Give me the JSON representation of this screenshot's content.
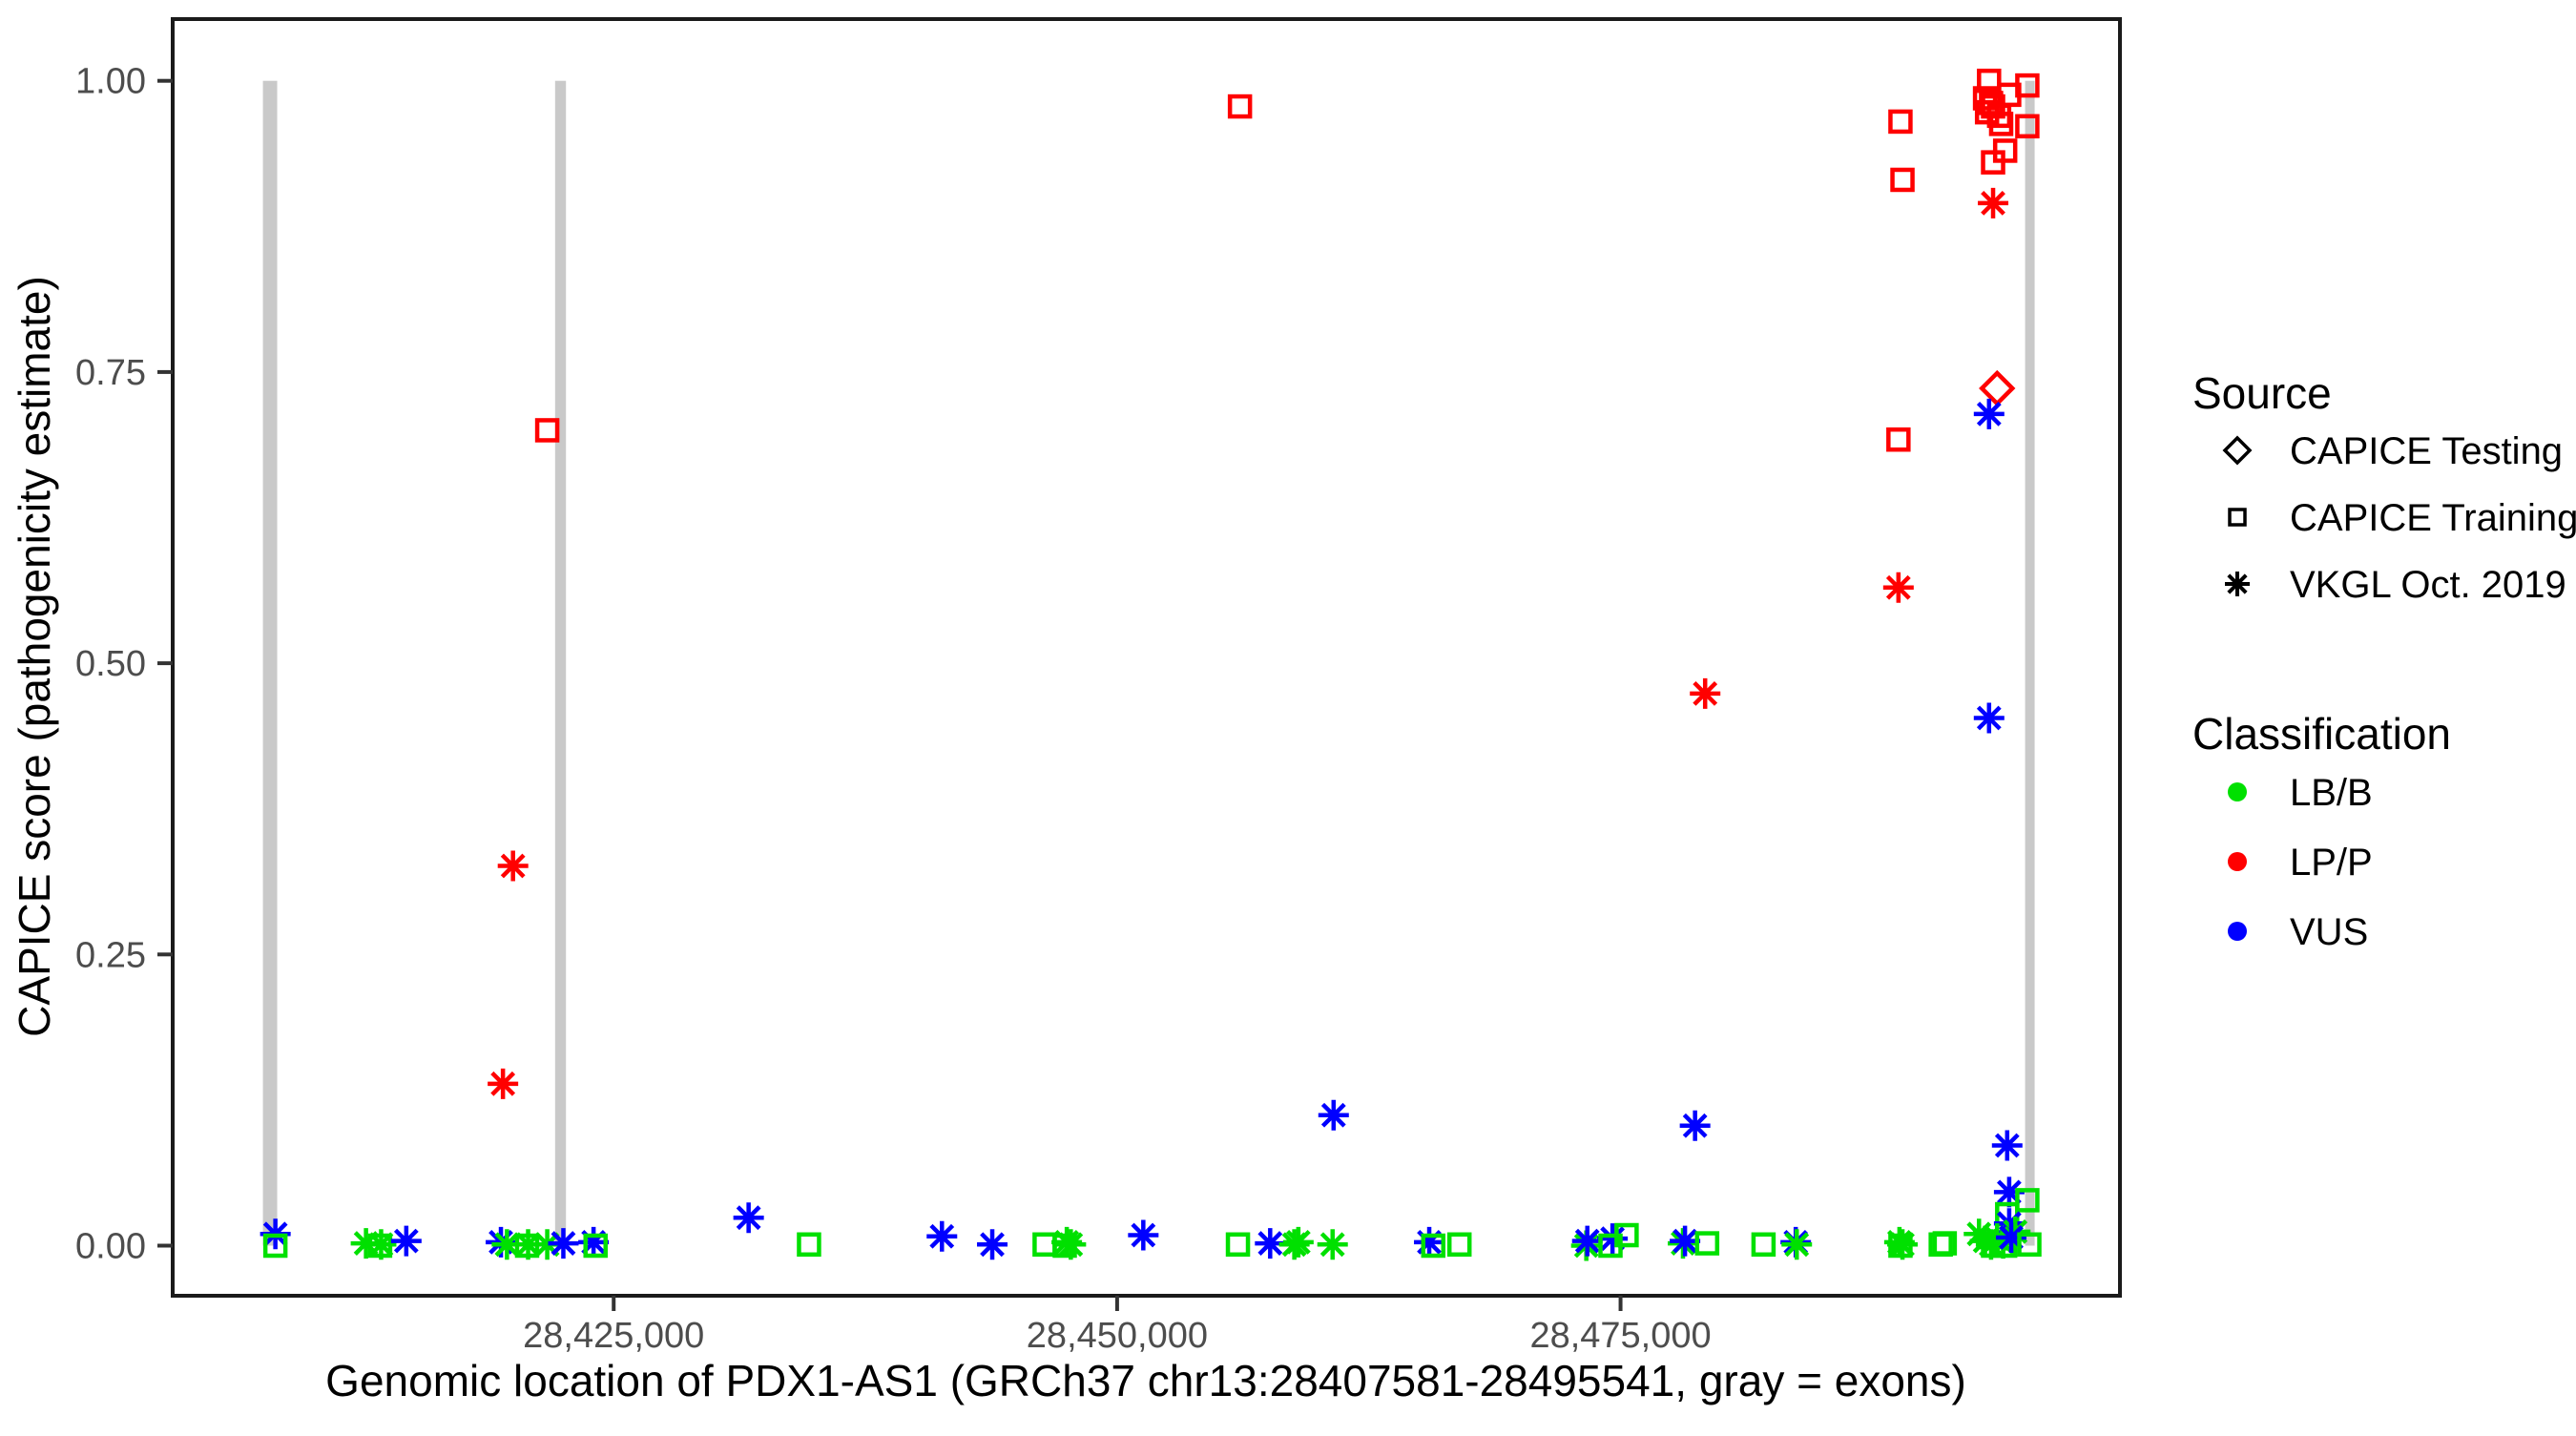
{
  "chart_data": {
    "type": "scatter",
    "title": "",
    "xlabel": "Genomic location of PDX1-AS1 (GRCh37 chr13:28407581-28495541, gray = exons)",
    "ylabel": "CAPICE score (pathogenicity estimate)",
    "x_domain": [
      28403100,
      28499800
    ],
    "y_domain": [
      -0.043,
      1.053
    ],
    "x_ticks": [
      {
        "value": 28425000,
        "label": "28,425,000"
      },
      {
        "value": 28450000,
        "label": "28,450,000"
      },
      {
        "value": 28475000,
        "label": "28,475,000"
      }
    ],
    "y_ticks": [
      {
        "value": 0.0,
        "label": "0.00"
      },
      {
        "value": 0.25,
        "label": "0.25"
      },
      {
        "value": 0.5,
        "label": "0.50"
      },
      {
        "value": 0.75,
        "label": "0.75"
      },
      {
        "value": 1.0,
        "label": "1.00"
      }
    ],
    "grid": false,
    "legend_position": "right",
    "exons": [
      [
        28407581,
        28408290
      ],
      [
        28422090,
        28422630
      ],
      [
        28495090,
        28495541
      ]
    ],
    "colors": {
      "LB/B": "#00E000",
      "LP/P": "#FF0000",
      "VUS": "#0000FF",
      "exon": "#C9C9C9",
      "axis_text": "#4D4D4D",
      "axis_line": "#1A1A1A",
      "legend_key": "#000000"
    },
    "marker_by_source": {
      "CAPICE Testing": "diamond",
      "CAPICE Training": "square",
      "VKGL Oct. 2019": "asterisk"
    },
    "legend": {
      "source_title": "Source",
      "source_items": [
        {
          "label": "CAPICE Testing",
          "marker": "diamond"
        },
        {
          "label": "CAPICE Training",
          "marker": "square"
        },
        {
          "label": "VKGL Oct. 2019",
          "marker": "asterisk"
        }
      ],
      "classification_title": "Classification",
      "classification_items": [
        {
          "label": "LB/B",
          "color": "#00E000"
        },
        {
          "label": "LP/P",
          "color": "#FF0000"
        },
        {
          "label": "VUS",
          "color": "#0000FF"
        }
      ]
    },
    "points": [
      {
        "pos": 28408200,
        "score": 0.01,
        "cls": "VUS",
        "src": "VKGL Oct. 2019"
      },
      {
        "pos": 28408200,
        "score": 0.0,
        "cls": "LB/B",
        "src": "CAPICE Training"
      },
      {
        "pos": 28412700,
        "score": 0.002,
        "cls": "LB/B",
        "src": "VKGL Oct. 2019"
      },
      {
        "pos": 28413400,
        "score": 0.0,
        "cls": "LB/B",
        "src": "CAPICE Training"
      },
      {
        "pos": 28413450,
        "score": 0.001,
        "cls": "LB/B",
        "src": "VKGL Oct. 2019"
      },
      {
        "pos": 28414700,
        "score": 0.004,
        "cls": "VUS",
        "src": "VKGL Oct. 2019"
      },
      {
        "pos": 28419500,
        "score": 0.139,
        "cls": "LP/P",
        "src": "VKGL Oct. 2019"
      },
      {
        "pos": 28420000,
        "score": 0.326,
        "cls": "LP/P",
        "src": "VKGL Oct. 2019"
      },
      {
        "pos": 28419400,
        "score": 0.003,
        "cls": "VUS",
        "src": "VKGL Oct. 2019"
      },
      {
        "pos": 28419700,
        "score": 0.001,
        "cls": "LB/B",
        "src": "VKGL Oct. 2019"
      },
      {
        "pos": 28420700,
        "score": 0.0,
        "cls": "LB/B",
        "src": "CAPICE Training"
      },
      {
        "pos": 28420750,
        "score": 0.001,
        "cls": "LB/B",
        "src": "VKGL Oct. 2019"
      },
      {
        "pos": 28421700,
        "score": 0.001,
        "cls": "LB/B",
        "src": "VKGL Oct. 2019"
      },
      {
        "pos": 28421700,
        "score": 0.7,
        "cls": "LP/P",
        "src": "CAPICE Training"
      },
      {
        "pos": 28422500,
        "score": 0.002,
        "cls": "VUS",
        "src": "VKGL Oct. 2019"
      },
      {
        "pos": 28424000,
        "score": 0.003,
        "cls": "VUS",
        "src": "VKGL Oct. 2019"
      },
      {
        "pos": 28424100,
        "score": 0.0,
        "cls": "LB/B",
        "src": "CAPICE Training"
      },
      {
        "pos": 28431700,
        "score": 0.024,
        "cls": "VUS",
        "src": "VKGL Oct. 2019"
      },
      {
        "pos": 28434700,
        "score": 0.001,
        "cls": "LB/B",
        "src": "CAPICE Training"
      },
      {
        "pos": 28441300,
        "score": 0.008,
        "cls": "VUS",
        "src": "VKGL Oct. 2019"
      },
      {
        "pos": 28443800,
        "score": 0.001,
        "cls": "VUS",
        "src": "VKGL Oct. 2019"
      },
      {
        "pos": 28446400,
        "score": 0.001,
        "cls": "LB/B",
        "src": "CAPICE Training"
      },
      {
        "pos": 28447400,
        "score": 0.0,
        "cls": "LB/B",
        "src": "CAPICE Training"
      },
      {
        "pos": 28447500,
        "score": 0.003,
        "cls": "LB/B",
        "src": "VKGL Oct. 2019"
      },
      {
        "pos": 28447700,
        "score": 0.001,
        "cls": "LB/B",
        "src": "VKGL Oct. 2019"
      },
      {
        "pos": 28451300,
        "score": 0.009,
        "cls": "VUS",
        "src": "VKGL Oct. 2019"
      },
      {
        "pos": 28456000,
        "score": 0.001,
        "cls": "LB/B",
        "src": "CAPICE Training"
      },
      {
        "pos": 28456100,
        "score": 0.978,
        "cls": "LP/P",
        "src": "CAPICE Training"
      },
      {
        "pos": 28457600,
        "score": 0.002,
        "cls": "VUS",
        "src": "VKGL Oct. 2019"
      },
      {
        "pos": 28458800,
        "score": 0.001,
        "cls": "LB/B",
        "src": "VKGL Oct. 2019"
      },
      {
        "pos": 28459000,
        "score": 0.003,
        "cls": "LB/B",
        "src": "VKGL Oct. 2019"
      },
      {
        "pos": 28460700,
        "score": 0.001,
        "cls": "LB/B",
        "src": "VKGL Oct. 2019"
      },
      {
        "pos": 28460750,
        "score": 0.112,
        "cls": "VUS",
        "src": "VKGL Oct. 2019"
      },
      {
        "pos": 28465500,
        "score": 0.003,
        "cls": "VUS",
        "src": "VKGL Oct. 2019"
      },
      {
        "pos": 28465700,
        "score": 0.0,
        "cls": "LB/B",
        "src": "CAPICE Training"
      },
      {
        "pos": 28467000,
        "score": 0.001,
        "cls": "LB/B",
        "src": "CAPICE Training"
      },
      {
        "pos": 28473300,
        "score": 0.0,
        "cls": "LB/B",
        "src": "VKGL Oct. 2019"
      },
      {
        "pos": 28473350,
        "score": 0.004,
        "cls": "VUS",
        "src": "VKGL Oct. 2019"
      },
      {
        "pos": 28474600,
        "score": 0.006,
        "cls": "VUS",
        "src": "VKGL Oct. 2019"
      },
      {
        "pos": 28474500,
        "score": 0.0,
        "cls": "LB/B",
        "src": "CAPICE Training"
      },
      {
        "pos": 28475300,
        "score": 0.009,
        "cls": "LB/B",
        "src": "CAPICE Training"
      },
      {
        "pos": 28478100,
        "score": 0.002,
        "cls": "LB/B",
        "src": "VKGL Oct. 2019"
      },
      {
        "pos": 28478200,
        "score": 0.004,
        "cls": "VUS",
        "src": "VKGL Oct. 2019"
      },
      {
        "pos": 28478700,
        "score": 0.103,
        "cls": "VUS",
        "src": "VKGL Oct. 2019"
      },
      {
        "pos": 28479300,
        "score": 0.002,
        "cls": "LB/B",
        "src": "CAPICE Training"
      },
      {
        "pos": 28479200,
        "score": 0.474,
        "cls": "LP/P",
        "src": "VKGL Oct. 2019"
      },
      {
        "pos": 28482100,
        "score": 0.001,
        "cls": "LB/B",
        "src": "CAPICE Training"
      },
      {
        "pos": 28483700,
        "score": 0.003,
        "cls": "VUS",
        "src": "VKGL Oct. 2019"
      },
      {
        "pos": 28483750,
        "score": 0.001,
        "cls": "LB/B",
        "src": "VKGL Oct. 2019"
      },
      {
        "pos": 28488900,
        "score": 0.0,
        "cls": "LB/B",
        "src": "CAPICE Training"
      },
      {
        "pos": 28488850,
        "score": 0.003,
        "cls": "LB/B",
        "src": "VKGL Oct. 2019"
      },
      {
        "pos": 28489000,
        "score": 0.001,
        "cls": "LB/B",
        "src": "VKGL Oct. 2019"
      },
      {
        "pos": 28490900,
        "score": 0.001,
        "cls": "LB/B",
        "src": "CAPICE Training"
      },
      {
        "pos": 28488800,
        "score": 0.692,
        "cls": "LP/P",
        "src": "CAPICE Training"
      },
      {
        "pos": 28488900,
        "score": 0.965,
        "cls": "LP/P",
        "src": "CAPICE Training"
      },
      {
        "pos": 28489000,
        "score": 0.915,
        "cls": "LP/P",
        "src": "CAPICE Training"
      },
      {
        "pos": 28488800,
        "score": 0.565,
        "cls": "LP/P",
        "src": "VKGL Oct. 2019"
      },
      {
        "pos": 28493500,
        "score": 0.895,
        "cls": "LP/P",
        "src": "VKGL Oct. 2019"
      },
      {
        "pos": 28493300,
        "score": 1.0,
        "cls": "LP/P",
        "src": "CAPICE Training"
      },
      {
        "pos": 28495200,
        "score": 0.996,
        "cls": "LP/P",
        "src": "CAPICE Training"
      },
      {
        "pos": 28494300,
        "score": 0.988,
        "cls": "LP/P",
        "src": "CAPICE Training"
      },
      {
        "pos": 28493100,
        "score": 0.985,
        "cls": "LP/P",
        "src": "CAPICE Training"
      },
      {
        "pos": 28493400,
        "score": 0.981,
        "cls": "LP/P",
        "src": "CAPICE Training"
      },
      {
        "pos": 28493500,
        "score": 0.978,
        "cls": "LP/P",
        "src": "CAPICE Training"
      },
      {
        "pos": 28493200,
        "score": 0.973,
        "cls": "LP/P",
        "src": "CAPICE Training"
      },
      {
        "pos": 28493800,
        "score": 0.97,
        "cls": "LP/P",
        "src": "CAPICE Training"
      },
      {
        "pos": 28493900,
        "score": 0.963,
        "cls": "LP/P",
        "src": "CAPICE Training"
      },
      {
        "pos": 28495200,
        "score": 0.961,
        "cls": "LP/P",
        "src": "CAPICE Training"
      },
      {
        "pos": 28494100,
        "score": 0.94,
        "cls": "LP/P",
        "src": "CAPICE Training"
      },
      {
        "pos": 28493500,
        "score": 0.93,
        "cls": "LP/P",
        "src": "CAPICE Training"
      },
      {
        "pos": 28493700,
        "score": 0.736,
        "cls": "LP/P",
        "src": "CAPICE Testing"
      },
      {
        "pos": 28493300,
        "score": 0.714,
        "cls": "VUS",
        "src": "VKGL Oct. 2019"
      },
      {
        "pos": 28493300,
        "score": 0.453,
        "cls": "VUS",
        "src": "VKGL Oct. 2019"
      },
      {
        "pos": 28494200,
        "score": 0.086,
        "cls": "VUS",
        "src": "VKGL Oct. 2019"
      },
      {
        "pos": 28494300,
        "score": 0.046,
        "cls": "VUS",
        "src": "VKGL Oct. 2019"
      },
      {
        "pos": 28495200,
        "score": 0.039,
        "cls": "LB/B",
        "src": "CAPICE Training"
      },
      {
        "pos": 28494200,
        "score": 0.027,
        "cls": "LB/B",
        "src": "CAPICE Training"
      },
      {
        "pos": 28494300,
        "score": 0.019,
        "cls": "VUS",
        "src": "VKGL Oct. 2019"
      },
      {
        "pos": 28491100,
        "score": 0.002,
        "cls": "LB/B",
        "src": "CAPICE Training"
      },
      {
        "pos": 28492800,
        "score": 0.01,
        "cls": "LB/B",
        "src": "VKGL Oct. 2019"
      },
      {
        "pos": 28493100,
        "score": 0.004,
        "cls": "LB/B",
        "src": "VKGL Oct. 2019"
      },
      {
        "pos": 28493400,
        "score": 0.001,
        "cls": "LB/B",
        "src": "VKGL Oct. 2019"
      },
      {
        "pos": 28493700,
        "score": 0.006,
        "cls": "LB/B",
        "src": "VKGL Oct. 2019"
      },
      {
        "pos": 28494000,
        "score": 0.002,
        "cls": "LB/B",
        "src": "VKGL Oct. 2019"
      },
      {
        "pos": 28494600,
        "score": 0.012,
        "cls": "LB/B",
        "src": "VKGL Oct. 2019"
      },
      {
        "pos": 28493500,
        "score": 0.0,
        "cls": "LB/B",
        "src": "CAPICE Training"
      },
      {
        "pos": 28494100,
        "score": 0.0,
        "cls": "LB/B",
        "src": "CAPICE Training"
      },
      {
        "pos": 28494400,
        "score": 0.007,
        "cls": "VUS",
        "src": "VKGL Oct. 2019"
      },
      {
        "pos": 28495300,
        "score": 0.001,
        "cls": "LB/B",
        "src": "CAPICE Training"
      }
    ]
  }
}
